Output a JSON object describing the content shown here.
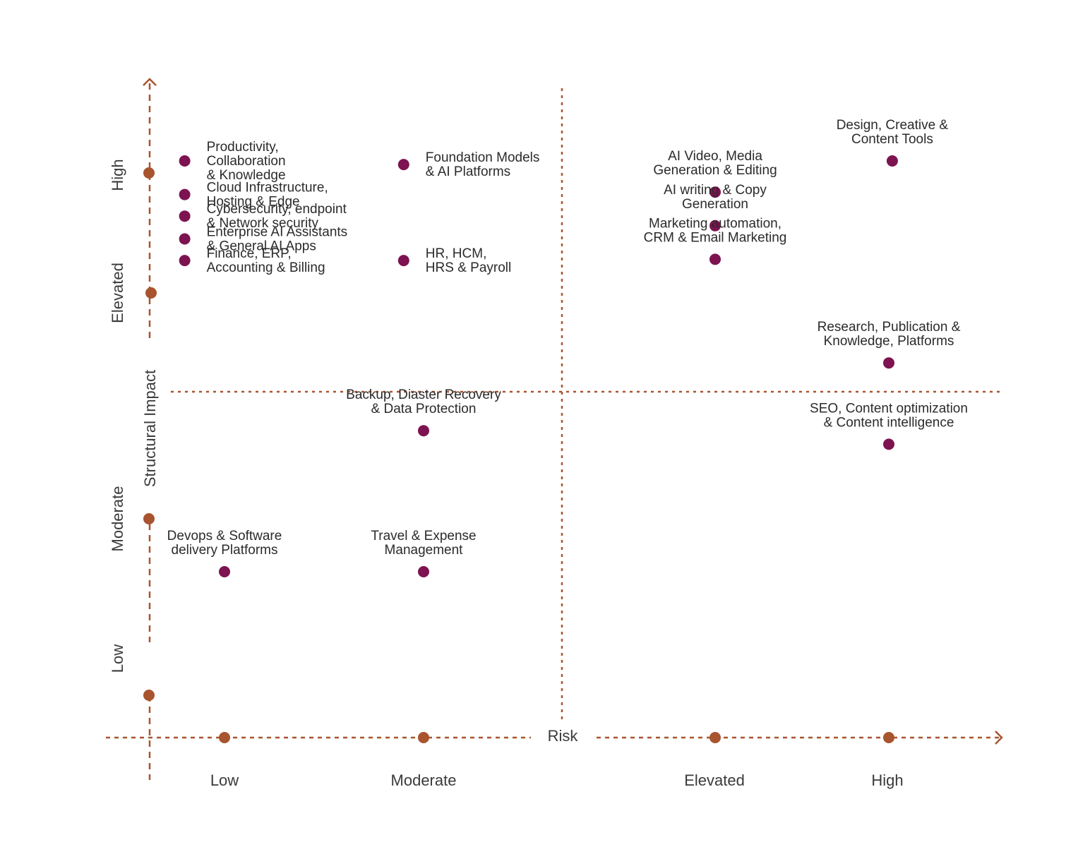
{
  "chart_data": {
    "type": "scatter",
    "xlabel": "Risk",
    "ylabel": "Structural Impact",
    "x_categories": [
      "Low",
      "Moderate",
      "Elevated",
      "High"
    ],
    "y_categories": [
      "Low",
      "Moderate",
      "Elevated",
      "High"
    ],
    "colors": {
      "axis": "#A8542E",
      "point": "#7D1350"
    },
    "points": [
      {
        "label": [
          "Productivity,",
          "Collaboration",
          "& Knowledge"
        ],
        "x": 0.8,
        "y": 4.1
      },
      {
        "label": [
          "Foundation Models",
          "& AI Platforms"
        ],
        "x": 1.9,
        "y": 4.07
      },
      {
        "label": [
          "Cloud Infrastructure,",
          "Hosting & Edge"
        ],
        "x": 0.8,
        "y": 3.82
      },
      {
        "label": [
          "Cybersecurity, endpoint",
          "& Network security"
        ],
        "x": 0.8,
        "y": 3.64
      },
      {
        "label": [
          "Enterprise AI Assistants",
          "& General AI Apps"
        ],
        "x": 0.8,
        "y": 3.45
      },
      {
        "label": [
          "Finance, ERP,",
          "Accounting & Billing"
        ],
        "x": 0.8,
        "y": 3.27
      },
      {
        "label": [
          "HR, HCM,",
          "HRS & Payroll"
        ],
        "x": 1.9,
        "y": 3.27
      },
      {
        "label": [
          "Design, Creative &",
          "Content Tools"
        ],
        "x": 4.02,
        "y": 4.1
      },
      {
        "label": [
          "AI Video, Media",
          "Generation & Editing"
        ],
        "x": 3.0,
        "y": 3.84
      },
      {
        "label": [
          "AI writing & Copy",
          "Generation"
        ],
        "x": 3.0,
        "y": 3.56
      },
      {
        "label": [
          "Marketing automation,",
          "CRM & Email Marketing"
        ],
        "x": 3.0,
        "y": 3.28
      },
      {
        "label": [
          "Research, Publication &",
          "Knowledge, Platforms"
        ],
        "x": 4.0,
        "y": 2.69
      },
      {
        "label": [
          "SEO, Content optimization",
          "& Content intelligence"
        ],
        "x": 4.0,
        "y": 2.33
      },
      {
        "label": [
          "Backup, Diaster Recovery",
          "& Data Protection"
        ],
        "x": 2.0,
        "y": 2.39
      },
      {
        "label": [
          "Devops & Software",
          "delivery Platforms"
        ],
        "x": 1.0,
        "y": 1.7
      },
      {
        "label": [
          "Travel & Expense",
          "Management"
        ],
        "x": 2.0,
        "y": 1.7
      }
    ]
  }
}
